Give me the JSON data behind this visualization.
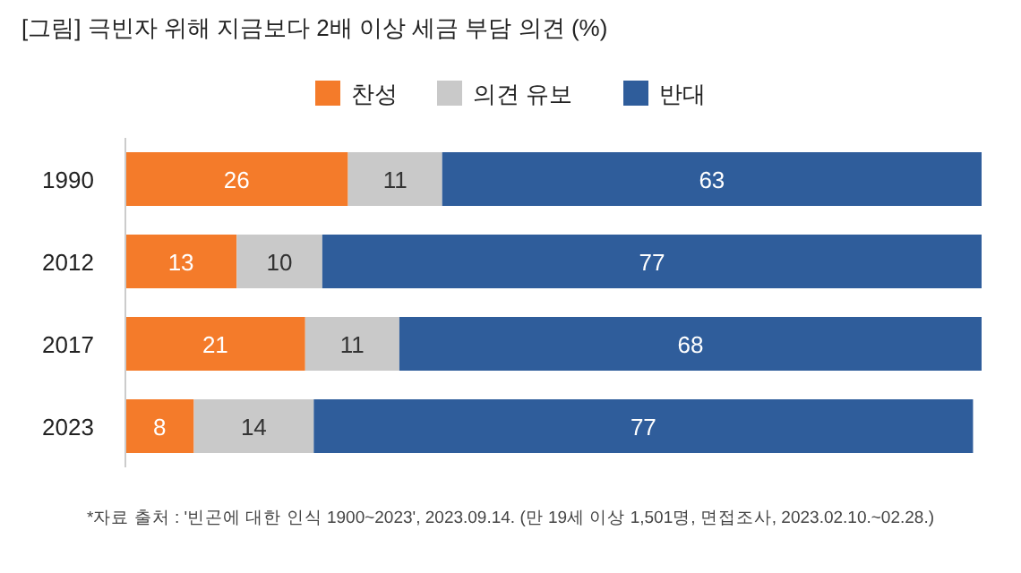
{
  "chart_data": {
    "type": "bar",
    "orientation": "horizontal",
    "stacked": true,
    "title": "[그림] 극빈자 위해 지금보다 2배 이상 세금 부담 의견 (%)",
    "categories": [
      "1990",
      "2012",
      "2017",
      "2023"
    ],
    "series": [
      {
        "name": "찬성",
        "color": "#f47b2a",
        "values": [
          26,
          13,
          21,
          8
        ]
      },
      {
        "name": "의견 유보",
        "color": "#c9c9c9",
        "values": [
          11,
          10,
          11,
          14
        ]
      },
      {
        "name": "반대",
        "color": "#2f5d9b",
        "values": [
          63,
          77,
          68,
          77
        ]
      }
    ],
    "data_labels": true,
    "legend": "top",
    "annotations": [
      "*자료 출처 : '빈곤에 대한 인식 1900~2023', 2023.09.14. (만 19세 이상 1,501명, 면접조사, 2023.02.10.~02.28.)"
    ]
  }
}
